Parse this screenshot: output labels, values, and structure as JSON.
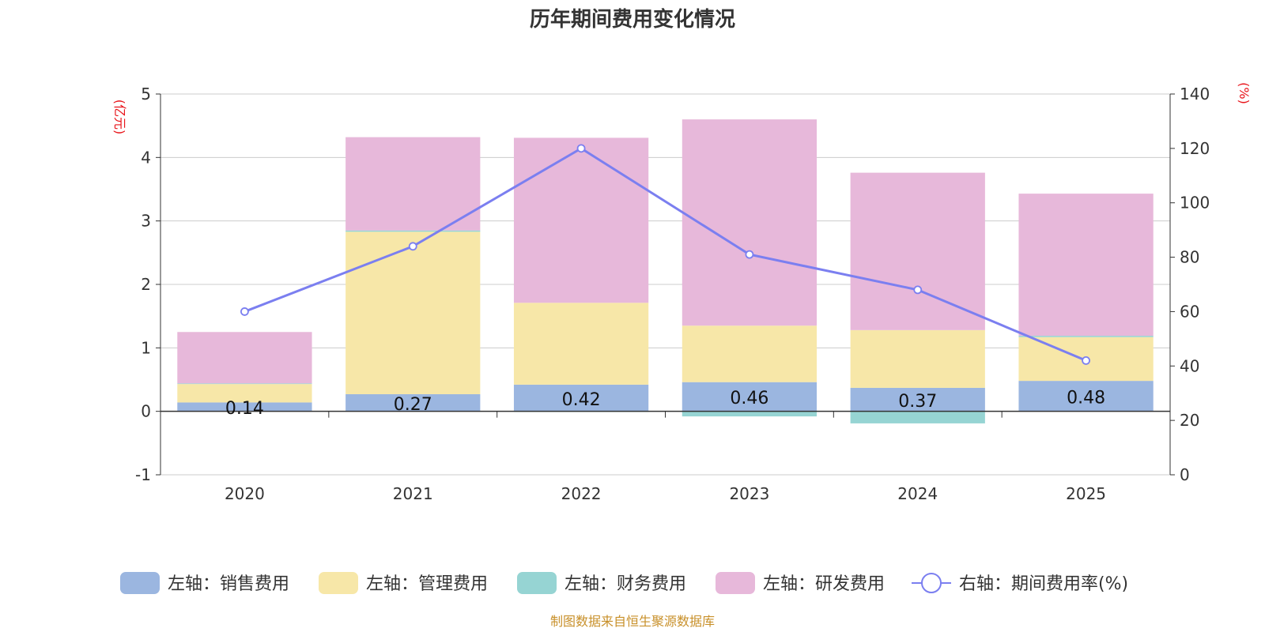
{
  "chart_data": {
    "type": "bar",
    "stacked": true,
    "title": "历年期间费用变化情况",
    "categories": [
      "2020",
      "2021",
      "2022",
      "2023",
      "2024",
      "2025"
    ],
    "left_axis": {
      "unit": "(亿元)",
      "ylim": [
        -1,
        5
      ],
      "ticks": [
        5,
        4,
        3,
        2,
        1,
        0,
        -1
      ]
    },
    "right_axis": {
      "unit": "(%)",
      "ylim": [
        0,
        140
      ],
      "ticks": [
        140,
        120,
        100,
        80,
        60,
        40,
        20,
        0
      ]
    },
    "series": [
      {
        "name": "左轴：销售费用",
        "axis": "left",
        "type": "bar",
        "color": "#9bb6e0",
        "values": [
          0.14,
          0.27,
          0.42,
          0.46,
          0.37,
          0.48
        ],
        "labels": [
          "0.14",
          "0.27",
          "0.42",
          "0.46",
          "0.37",
          "0.48"
        ]
      },
      {
        "name": "左轴：管理费用",
        "axis": "left",
        "type": "bar",
        "color": "#f7e7a8",
        "values": [
          0.29,
          2.56,
          1.29,
          0.89,
          0.91,
          0.69
        ]
      },
      {
        "name": "左轴：财务费用",
        "axis": "left",
        "type": "bar",
        "color": "#96d4d3",
        "values": [
          0.01,
          0.02,
          -0.01,
          -0.08,
          -0.19,
          0.02
        ]
      },
      {
        "name": "左轴：研发费用",
        "axis": "left",
        "type": "bar",
        "color": "#e7b8da",
        "values": [
          0.81,
          1.47,
          2.6,
          3.25,
          2.48,
          2.24
        ]
      },
      {
        "name": "右轴：期间费用率(%)",
        "axis": "right",
        "type": "line",
        "color": "#7b7ff0",
        "values": [
          60,
          84,
          120,
          81,
          68,
          42
        ]
      }
    ]
  },
  "footer": {
    "source": "制图数据来自恒生聚源数据库"
  }
}
